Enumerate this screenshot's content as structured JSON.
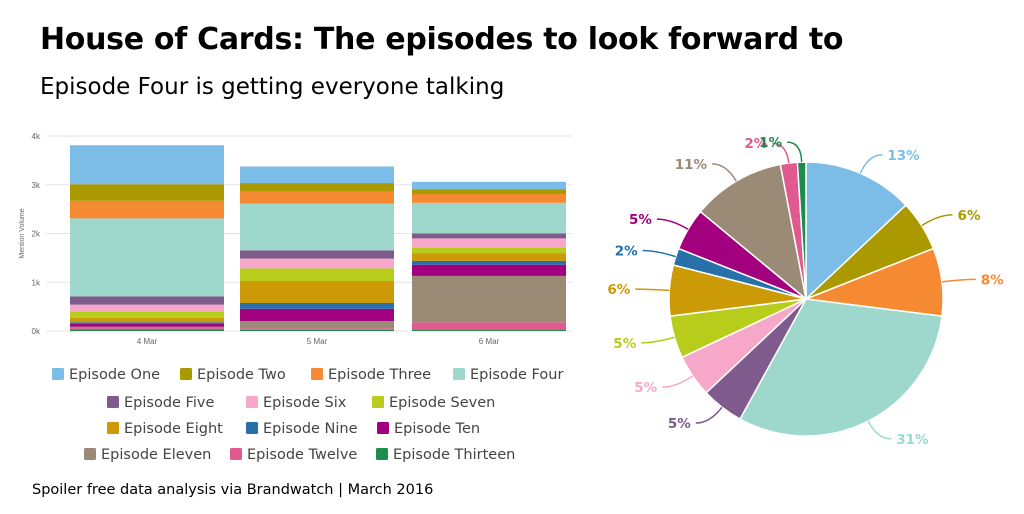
{
  "title": "House of Cards: The episodes to look forward to",
  "subtitle": "Episode Four is getting everyone talking",
  "footer": "Spoiler free data analysis via Brandwatch | March 2016",
  "chart_data": [
    {
      "type": "bar",
      "stacked": true,
      "categories": [
        "4 Mar",
        "5 Mar",
        "6 Mar"
      ],
      "ylabel": "Mention Volume",
      "yticks": [
        "0k",
        "1k",
        "2k",
        "3k",
        "4k"
      ],
      "ylim": [
        0,
        4000
      ],
      "grid": true,
      "legend": "bottom",
      "series": [
        {
          "name": "Episode Thirteen",
          "color": "#1e8c4e",
          "values": [
            30,
            25,
            20
          ]
        },
        {
          "name": "Episode Twelve",
          "color": "#e05a8f",
          "values": [
            30,
            30,
            160
          ]
        },
        {
          "name": "Episode Eleven",
          "color": "#9b8a75",
          "values": [
            30,
            150,
            950
          ]
        },
        {
          "name": "Episode Ten",
          "color": "#a3007f",
          "values": [
            60,
            250,
            230
          ]
        },
        {
          "name": "Episode Nine",
          "color": "#2770aa",
          "values": [
            30,
            120,
            80
          ]
        },
        {
          "name": "Episode Eight",
          "color": "#cc9a06",
          "values": [
            90,
            450,
            150
          ]
        },
        {
          "name": "Episode Seven",
          "color": "#b7cc1b",
          "values": [
            120,
            260,
            120
          ]
        },
        {
          "name": "Episode Six",
          "color": "#f7a8c8",
          "values": [
            150,
            200,
            190
          ]
        },
        {
          "name": "Episode Five",
          "color": "#7e5b8c",
          "values": [
            170,
            170,
            100
          ]
        },
        {
          "name": "Episode Four",
          "color": "#9ed8cc",
          "values": [
            1600,
            960,
            630
          ]
        },
        {
          "name": "Episode Three",
          "color": "#f58a32",
          "values": [
            360,
            240,
            180
          ]
        },
        {
          "name": "Episode Two",
          "color": "#aa9a00",
          "values": [
            340,
            180,
            100
          ]
        },
        {
          "name": "Episode One",
          "color": "#7bbde7",
          "values": [
            800,
            340,
            150
          ]
        }
      ]
    },
    {
      "type": "pie",
      "slices": [
        {
          "name": "Episode One",
          "value": 13,
          "label": "13%",
          "color": "#7bbde7"
        },
        {
          "name": "Episode Two",
          "value": 6,
          "label": "6%",
          "color": "#aa9a00"
        },
        {
          "name": "Episode Three",
          "value": 8,
          "label": "8%",
          "color": "#f58a32"
        },
        {
          "name": "Episode Four",
          "value": 31,
          "label": "31%",
          "color": "#9ed8cc"
        },
        {
          "name": "Episode Five",
          "value": 5,
          "label": "5%",
          "color": "#7e5b8c"
        },
        {
          "name": "Episode Six",
          "value": 5,
          "label": "5%",
          "color": "#f7a8c8"
        },
        {
          "name": "Episode Seven",
          "value": 5,
          "label": "5%",
          "color": "#b7cc1b"
        },
        {
          "name": "Episode Eight",
          "value": 6,
          "label": "6%",
          "color": "#cc9a06"
        },
        {
          "name": "Episode Nine",
          "value": 2,
          "label": "2%",
          "color": "#2770aa"
        },
        {
          "name": "Episode Ten",
          "value": 5,
          "label": "5%",
          "color": "#a3007f"
        },
        {
          "name": "Episode Eleven",
          "value": 11,
          "label": "11%",
          "color": "#9b8a75"
        },
        {
          "name": "Episode Twelve",
          "value": 2,
          "label": "2%",
          "color": "#e05a8f"
        },
        {
          "name": "Episode Thirteen",
          "value": 1,
          "label": "1%",
          "color": "#1e8c4e"
        }
      ]
    }
  ],
  "legend": [
    [
      "Episode One",
      "Episode Two",
      "Episode Three",
      "Episode Four"
    ],
    [
      "Episode Five",
      "Episode Six",
      "Episode Seven"
    ],
    [
      "Episode Eight",
      "Episode Nine",
      "Episode Ten"
    ],
    [
      "Episode Eleven",
      "Episode Twelve",
      "Episode Thirteen"
    ]
  ],
  "legend_colors": {
    "Episode One": "#7bbde7",
    "Episode Two": "#aa9a00",
    "Episode Three": "#f58a32",
    "Episode Four": "#9ed8cc",
    "Episode Five": "#7e5b8c",
    "Episode Six": "#f7a8c8",
    "Episode Seven": "#b7cc1b",
    "Episode Eight": "#cc9a06",
    "Episode Nine": "#2770aa",
    "Episode Ten": "#a3007f",
    "Episode Eleven": "#9b8a75",
    "Episode Twelve": "#e05a8f",
    "Episode Thirteen": "#1e8c4e"
  }
}
